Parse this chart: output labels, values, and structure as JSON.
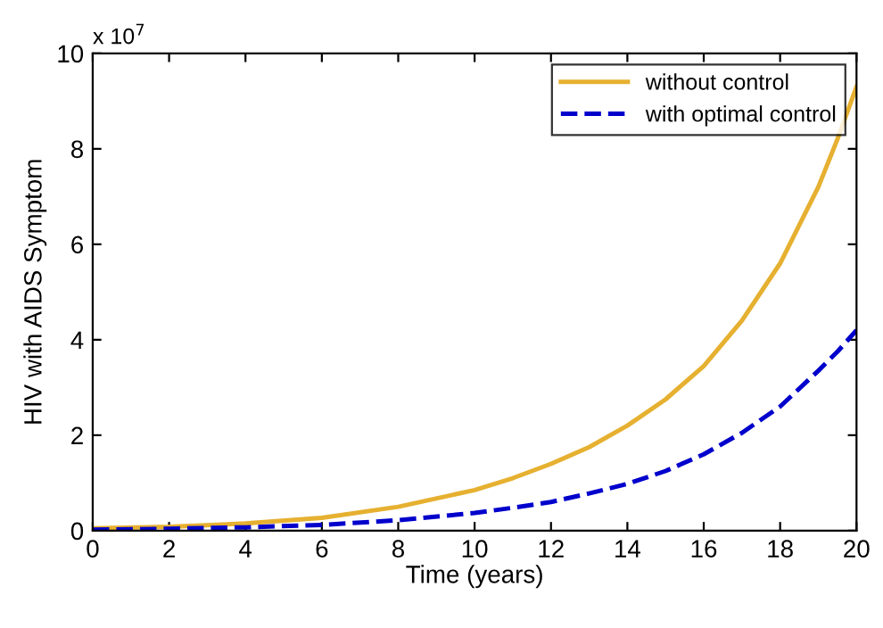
{
  "chart_data": {
    "type": "line",
    "xlabel": "Time (years)",
    "ylabel": "HIV with AIDS Symptom",
    "annotations": [
      "x 10$^{7}$"
    ],
    "x": [
      0,
      2,
      4,
      6,
      8,
      10,
      11,
      12,
      13,
      14,
      15,
      16,
      17,
      18,
      19,
      19.5,
      20
    ],
    "series": [
      {
        "name": "without control",
        "color": "#e6b030",
        "line_style": "solid",
        "values": [
          0.05,
          0.08,
          0.15,
          0.27,
          0.5,
          0.85,
          1.1,
          1.4,
          1.75,
          2.2,
          2.75,
          3.45,
          4.4,
          5.6,
          7.2,
          8.2,
          9.3
        ]
      },
      {
        "name": "with optimal control",
        "color": "#0000cc",
        "line_style": "dashed",
        "values": [
          0.02,
          0.04,
          0.07,
          0.12,
          0.22,
          0.37,
          0.48,
          0.6,
          0.78,
          0.98,
          1.25,
          1.6,
          2.05,
          2.6,
          3.35,
          3.75,
          4.2
        ]
      }
    ],
    "xlim": [
      0,
      20
    ],
    "ylim": [
      0,
      10
    ],
    "xticks": [
      0,
      2,
      4,
      6,
      8,
      10,
      12,
      14,
      16,
      18,
      20
    ],
    "yticks": [
      0,
      2,
      4,
      6,
      8,
      10
    ],
    "grid": false,
    "legend": "top right",
    "marker": "none"
  }
}
